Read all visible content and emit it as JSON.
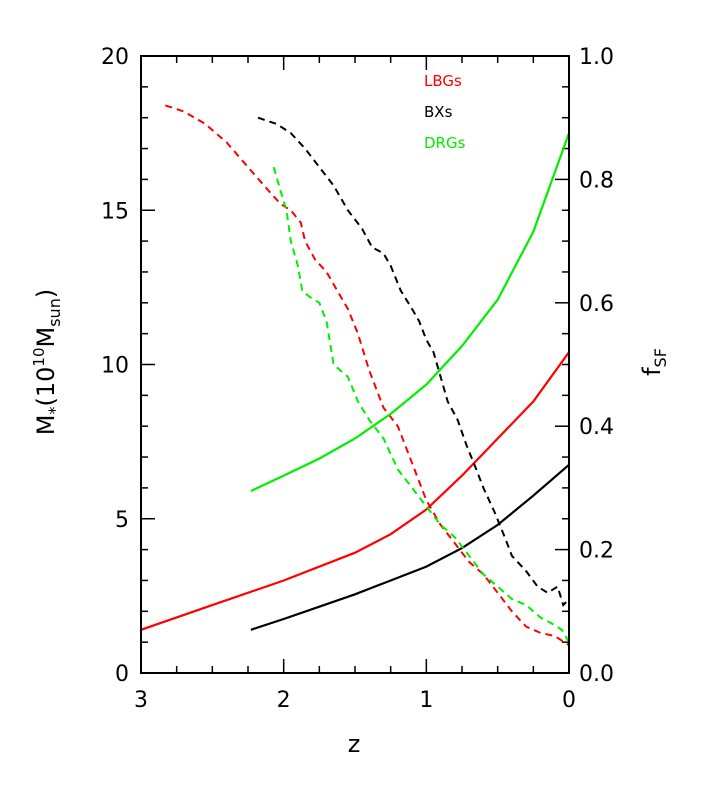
{
  "chart_data": {
    "type": "line",
    "x_axis": {
      "title": "z",
      "range": [
        3,
        0
      ],
      "reversed": true,
      "ticks": [
        3,
        2,
        1,
        0
      ],
      "tick_labels": [
        "3",
        "2",
        "1",
        "0"
      ]
    },
    "y_axis_left": {
      "title_main": "M",
      "title_star": "*",
      "title_open": "(10",
      "title_exp": "10",
      "title_m": "M",
      "title_sub": "sun",
      "title_close": ")",
      "range": [
        0,
        20
      ],
      "ticks": [
        0,
        5,
        10,
        15,
        20
      ],
      "tick_labels": [
        "0",
        "5",
        "10",
        "15",
        "20"
      ]
    },
    "y_axis_right": {
      "title_main": "f",
      "title_sub": "SF",
      "range": [
        0,
        1
      ],
      "ticks": [
        0,
        0.2,
        0.4,
        0.6,
        0.8,
        1.0
      ],
      "tick_labels": [
        "0.0",
        "0.2",
        "0.4",
        "0.6",
        "0.8",
        "1.0"
      ]
    },
    "grid": false,
    "legend_position": "top-right",
    "series": [
      {
        "name": "LBGs",
        "color": "#ff0000",
        "solid_axis": "left",
        "solid": [
          [
            3.0,
            1.4
          ],
          [
            2.5,
            2.2
          ],
          [
            2.0,
            3.0
          ],
          [
            1.5,
            3.9
          ],
          [
            1.25,
            4.5
          ],
          [
            1.0,
            5.3
          ],
          [
            0.75,
            6.4
          ],
          [
            0.5,
            7.6
          ],
          [
            0.25,
            8.8
          ],
          [
            0.0,
            10.4
          ]
        ],
        "dashed_axis": "right",
        "dashed": [
          [
            2.83,
            0.92
          ],
          [
            2.7,
            0.91
          ],
          [
            2.55,
            0.89
          ],
          [
            2.4,
            0.86
          ],
          [
            2.25,
            0.82
          ],
          [
            2.1,
            0.78
          ],
          [
            2.02,
            0.76
          ],
          [
            1.95,
            0.75
          ],
          [
            1.88,
            0.73
          ],
          [
            1.85,
            0.7
          ],
          [
            1.78,
            0.67
          ],
          [
            1.7,
            0.65
          ],
          [
            1.65,
            0.63
          ],
          [
            1.55,
            0.59
          ],
          [
            1.48,
            0.55
          ],
          [
            1.4,
            0.49
          ],
          [
            1.3,
            0.43
          ],
          [
            1.2,
            0.4
          ],
          [
            1.1,
            0.34
          ],
          [
            1.0,
            0.28
          ],
          [
            0.9,
            0.24
          ],
          [
            0.8,
            0.21
          ],
          [
            0.7,
            0.18
          ],
          [
            0.6,
            0.16
          ],
          [
            0.5,
            0.13
          ],
          [
            0.4,
            0.1
          ],
          [
            0.3,
            0.075
          ],
          [
            0.2,
            0.065
          ],
          [
            0.1,
            0.06
          ],
          [
            0.0,
            0.045
          ]
        ]
      },
      {
        "name": "BXs",
        "color": "#000000",
        "solid_axis": "left",
        "solid": [
          [
            2.23,
            1.4
          ],
          [
            2.0,
            1.75
          ],
          [
            1.75,
            2.15
          ],
          [
            1.5,
            2.55
          ],
          [
            1.25,
            3.0
          ],
          [
            1.0,
            3.45
          ],
          [
            0.75,
            4.05
          ],
          [
            0.5,
            4.8
          ],
          [
            0.25,
            5.75
          ],
          [
            0.0,
            6.75
          ]
        ],
        "dashed_axis": "right",
        "dashed": [
          [
            2.18,
            0.9
          ],
          [
            2.05,
            0.89
          ],
          [
            1.95,
            0.875
          ],
          [
            1.85,
            0.85
          ],
          [
            1.75,
            0.82
          ],
          [
            1.65,
            0.79
          ],
          [
            1.55,
            0.75
          ],
          [
            1.45,
            0.72
          ],
          [
            1.38,
            0.69
          ],
          [
            1.3,
            0.68
          ],
          [
            1.25,
            0.66
          ],
          [
            1.18,
            0.62
          ],
          [
            1.1,
            0.59
          ],
          [
            1.05,
            0.57
          ],
          [
            1.0,
            0.54
          ],
          [
            0.95,
            0.52
          ],
          [
            0.9,
            0.48
          ],
          [
            0.85,
            0.44
          ],
          [
            0.78,
            0.41
          ],
          [
            0.72,
            0.37
          ],
          [
            0.65,
            0.33
          ],
          [
            0.6,
            0.3
          ],
          [
            0.52,
            0.26
          ],
          [
            0.45,
            0.22
          ],
          [
            0.4,
            0.19
          ],
          [
            0.3,
            0.165
          ],
          [
            0.22,
            0.14
          ],
          [
            0.15,
            0.13
          ],
          [
            0.08,
            0.14
          ],
          [
            0.04,
            0.11
          ],
          [
            0.0,
            0.12
          ]
        ]
      },
      {
        "name": "DRGs",
        "color": "#00ee00",
        "solid_axis": "left",
        "solid": [
          [
            2.23,
            5.9
          ],
          [
            2.0,
            6.4
          ],
          [
            1.75,
            6.95
          ],
          [
            1.5,
            7.6
          ],
          [
            1.25,
            8.4
          ],
          [
            1.0,
            9.35
          ],
          [
            0.75,
            10.6
          ],
          [
            0.5,
            12.1
          ],
          [
            0.25,
            14.3
          ],
          [
            0.0,
            17.5
          ]
        ],
        "dashed_axis": "right",
        "dashed": [
          [
            2.07,
            0.82
          ],
          [
            2.02,
            0.78
          ],
          [
            1.98,
            0.75
          ],
          [
            1.95,
            0.7
          ],
          [
            1.9,
            0.66
          ],
          [
            1.87,
            0.62
          ],
          [
            1.82,
            0.61
          ],
          [
            1.75,
            0.6
          ],
          [
            1.7,
            0.57
          ],
          [
            1.65,
            0.5
          ],
          [
            1.6,
            0.49
          ],
          [
            1.55,
            0.48
          ],
          [
            1.48,
            0.44
          ],
          [
            1.4,
            0.41
          ],
          [
            1.3,
            0.38
          ],
          [
            1.2,
            0.33
          ],
          [
            1.1,
            0.3
          ],
          [
            1.0,
            0.27
          ],
          [
            0.9,
            0.24
          ],
          [
            0.8,
            0.22
          ],
          [
            0.7,
            0.19
          ],
          [
            0.6,
            0.16
          ],
          [
            0.5,
            0.14
          ],
          [
            0.4,
            0.12
          ],
          [
            0.3,
            0.11
          ],
          [
            0.2,
            0.09
          ],
          [
            0.12,
            0.08
          ],
          [
            0.05,
            0.07
          ],
          [
            0.0,
            0.05
          ]
        ]
      }
    ]
  }
}
